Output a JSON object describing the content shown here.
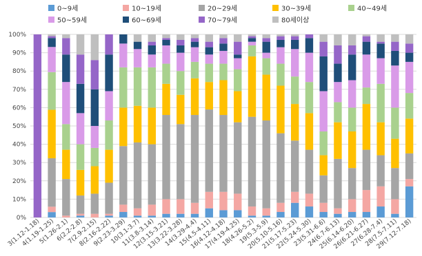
{
  "chart_data": {
    "type": "bar",
    "stacked": "percent",
    "title": "",
    "xlabel": "",
    "ylabel": "",
    "ylim": [
      0,
      100
    ],
    "y_tick_format": "percent",
    "grid": true,
    "legend_position": "top",
    "categories": [
      "3(1.12-1.18)",
      "4(1.19-1.25)",
      "5(1.26-2.1)",
      "6(2.2-2.8)",
      "7(2.9-2.15)",
      "8(2.16-2.22)",
      "9(2.23-3.29)",
      "10(3.1-3.7)",
      "11(3.8-3.14)",
      "12(3.15-3.21)",
      "13(3.22-3.28)",
      "14(3.29-4.4)",
      "15(4.5-4.11)",
      "16(4.12-4.18)",
      "17(4.19-4.25)",
      "18(4.26-5.2)",
      "19(5.3-5.9)",
      "20(5.10-5.16)",
      "21(5.17-5.23)",
      "22(5.24-5.30)",
      "23(5.31-6.6)",
      "24(6.7-6.13)",
      "25(6.14-6.20)",
      "26(6.21-6.27)",
      "27(6.28-7.4)",
      "28(7.5-7.11)",
      "29(7.12-7.18)"
    ],
    "colors": [
      "#5B9BD5",
      "#F4A7A3",
      "#A5A5A5",
      "#FFC000",
      "#A9D18E",
      "#D99BE8",
      "#1F4E79",
      "#9566C8",
      "#BFBFBF"
    ],
    "series": [
      {
        "name": "0~9세",
        "values": [
          0,
          3,
          0,
          1,
          0,
          1,
          3,
          1,
          1,
          2,
          2,
          2,
          5,
          4,
          4,
          1,
          1,
          3,
          8,
          6,
          3,
          2,
          3,
          3,
          6,
          2,
          17
        ]
      },
      {
        "name": "10~19세",
        "values": [
          0,
          3,
          1,
          1,
          2,
          1,
          4,
          4,
          6,
          8,
          8,
          6,
          9,
          10,
          9,
          5,
          4,
          5,
          6,
          7,
          5,
          3,
          7,
          12,
          11,
          8,
          4
        ]
      },
      {
        "name": "20~29세",
        "values": [
          0,
          27,
          20,
          10,
          11,
          17,
          32,
          36,
          33,
          46,
          41,
          48,
          45,
          42,
          39,
          49,
          48,
          38,
          28,
          24,
          15,
          27,
          17,
          22,
          17,
          17,
          14
        ]
      },
      {
        "name": "30~39세",
        "values": [
          0,
          27,
          16,
          14,
          15,
          18,
          21,
          20,
          20,
          17,
          16,
          20,
          15,
          19,
          17,
          33,
          25,
          26,
          20,
          20,
          11,
          20,
          20,
          25,
          18,
          16,
          19
        ]
      },
      {
        "name": "40~49세",
        "values": [
          0,
          21,
          14,
          14,
          10,
          16,
          22,
          21,
          22,
          11,
          13,
          9,
          10,
          9,
          12,
          6,
          9,
          12,
          15,
          17,
          13,
          11,
          13,
          9,
          21,
          17,
          14
        ]
      },
      {
        "name": "50~59세",
        "values": [
          0,
          14,
          23,
          17,
          12,
          16,
          13,
          10,
          7,
          10,
          10,
          8,
          5,
          7,
          6,
          2,
          3,
          9,
          15,
          16,
          22,
          11,
          15,
          18,
          14,
          23,
          17
        ]
      },
      {
        "name": "60~69세",
        "values": [
          0,
          5,
          15,
          16,
          20,
          20,
          5,
          4,
          5,
          3,
          4,
          3,
          4,
          4,
          2,
          2,
          6,
          4,
          5,
          8,
          19,
          10,
          14,
          7,
          8,
          8,
          5
        ]
      },
      {
        "name": "70~79세",
        "values": [
          100,
          1,
          9,
          16,
          16,
          11,
          0,
          0,
          2,
          1,
          3,
          2,
          3,
          3,
          7,
          1,
          2,
          2,
          2,
          2,
          8,
          10,
          5,
          3,
          1,
          5,
          5
        ]
      },
      {
        "name": "80세이상",
        "values": [
          0,
          1,
          2,
          11,
          14,
          0,
          0,
          4,
          4,
          2,
          3,
          2,
          4,
          2,
          4,
          1,
          2,
          1,
          1,
          0,
          4,
          6,
          6,
          1,
          4,
          4,
          5
        ]
      }
    ],
    "y_ticks": [
      0,
      10,
      20,
      30,
      40,
      50,
      60,
      70,
      80,
      90,
      100
    ]
  }
}
